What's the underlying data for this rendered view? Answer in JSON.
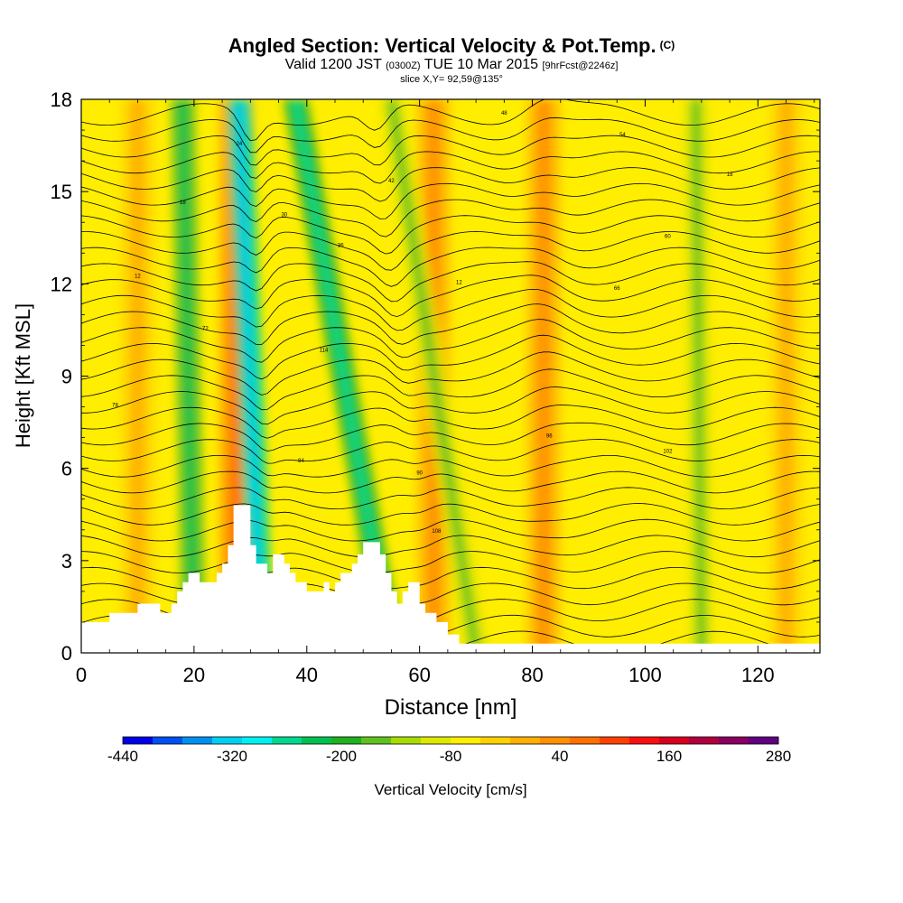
{
  "title": {
    "main": "Angled Section: Vertical Velocity & Pot.Temp.",
    "main_suffix": "(C)",
    "valid_a": "Valid 1200 JST",
    "valid_b": "(0300Z)",
    "valid_c": "TUE 10 Mar 2015",
    "valid_d": "[9hrFcst@2246z]",
    "slice": "slice X,Y= 92,59@135°"
  },
  "chart_data": {
    "type": "heatmap",
    "xlabel": "Distance [nm]",
    "ylabel": "Height [Kft MSL]",
    "xlim": [
      0,
      131
    ],
    "ylim": [
      0,
      18
    ],
    "x_ticks": [
      0,
      20,
      40,
      60,
      80,
      100,
      120
    ],
    "y_ticks": [
      0,
      3,
      6,
      9,
      12,
      15,
      18
    ],
    "colorbar": {
      "label": "Vertical Velocity [cm/s]",
      "min": -440,
      "max": 280,
      "step": 40,
      "tick_labels": [
        -440,
        -320,
        -200,
        -80,
        40,
        160,
        280
      ],
      "colors": [
        "#0000e6",
        "#0050f0",
        "#0090f0",
        "#00d0f0",
        "#00f0f0",
        "#00d890",
        "#00c050",
        "#20b020",
        "#60c020",
        "#a8dc00",
        "#e0e800",
        "#ffee00",
        "#ffd000",
        "#ffb000",
        "#ff9000",
        "#ff7000",
        "#ff4000",
        "#f81010",
        "#d80020",
        "#b00040",
        "#880060",
        "#600080"
      ]
    },
    "terrain_profile": [
      [
        0,
        1.0
      ],
      [
        5,
        1.0
      ],
      [
        5,
        1.3
      ],
      [
        10,
        1.3
      ],
      [
        10,
        1.6
      ],
      [
        14,
        1.6
      ],
      [
        14,
        1.3
      ],
      [
        16,
        1.3
      ],
      [
        16,
        1.6
      ],
      [
        17,
        1.6
      ],
      [
        17,
        2.0
      ],
      [
        18,
        2.0
      ],
      [
        18,
        2.3
      ],
      [
        19,
        2.3
      ],
      [
        19,
        2.6
      ],
      [
        21,
        2.6
      ],
      [
        21,
        2.3
      ],
      [
        24,
        2.3
      ],
      [
        24,
        2.6
      ],
      [
        25,
        2.6
      ],
      [
        25,
        2.9
      ],
      [
        26,
        2.9
      ],
      [
        26,
        3.5
      ],
      [
        27,
        3.5
      ],
      [
        27,
        4.8
      ],
      [
        30,
        4.8
      ],
      [
        30,
        3.5
      ],
      [
        31,
        3.5
      ],
      [
        31,
        2.9
      ],
      [
        33,
        2.9
      ],
      [
        33,
        2.6
      ],
      [
        34,
        2.6
      ],
      [
        34,
        3.2
      ],
      [
        36,
        3.2
      ],
      [
        36,
        2.9
      ],
      [
        37,
        2.9
      ],
      [
        37,
        2.6
      ],
      [
        38,
        2.6
      ],
      [
        38,
        2.3
      ],
      [
        40,
        2.3
      ],
      [
        40,
        2.0
      ],
      [
        43,
        2.0
      ],
      [
        43,
        2.3
      ],
      [
        44,
        2.3
      ],
      [
        44,
        2.0
      ],
      [
        45,
        2.0
      ],
      [
        45,
        2.3
      ],
      [
        46,
        2.3
      ],
      [
        46,
        2.6
      ],
      [
        48,
        2.6
      ],
      [
        48,
        2.9
      ],
      [
        49,
        2.9
      ],
      [
        49,
        3.2
      ],
      [
        50,
        3.2
      ],
      [
        50,
        3.6
      ],
      [
        53,
        3.6
      ],
      [
        53,
        3.2
      ],
      [
        54,
        3.2
      ],
      [
        54,
        2.6
      ],
      [
        55,
        2.6
      ],
      [
        55,
        2.0
      ],
      [
        56,
        2.0
      ],
      [
        56,
        1.6
      ],
      [
        57,
        1.6
      ],
      [
        57,
        2.0
      ],
      [
        58,
        2.0
      ],
      [
        58,
        2.3
      ],
      [
        60,
        2.3
      ],
      [
        60,
        1.6
      ],
      [
        61,
        1.6
      ],
      [
        61,
        1.3
      ],
      [
        63,
        1.3
      ],
      [
        63,
        1.0
      ],
      [
        65,
        1.0
      ],
      [
        65,
        0.6
      ],
      [
        67,
        0.6
      ],
      [
        67,
        0.3
      ],
      [
        131,
        0.3
      ]
    ],
    "ascent_bands": [
      {
        "center_x": 27.5,
        "value": 160
      },
      {
        "center_x": 82,
        "value": 120
      },
      {
        "center_x": 62.5,
        "value": 140
      },
      {
        "center_x": 10,
        "value": 80
      },
      {
        "center_x": 125,
        "value": 100
      }
    ],
    "descent_bands": [
      {
        "x_top": 18,
        "x_bottom": 20,
        "value": -200
      },
      {
        "x_top": 28,
        "x_bottom": 32,
        "value": -320
      },
      {
        "x_top": 38,
        "x_bottom": 55,
        "value": -240
      },
      {
        "x_top": 55,
        "x_bottom": 70,
        "value": -120
      },
      {
        "x_top": 109,
        "x_bottom": 110,
        "value": -100
      }
    ],
    "contour_labels": [
      "12",
      "14",
      "16",
      "18",
      "20",
      "22",
      "24",
      "26",
      "28",
      "30",
      "32",
      "34",
      "36",
      "38",
      "40",
      "42",
      "44",
      "46",
      "48",
      "50",
      "52",
      "54",
      "56",
      "58",
      "60",
      "62",
      "64",
      "66",
      "68",
      "70",
      "72",
      "74",
      "76",
      "78",
      "80",
      "82",
      "84",
      "86",
      "88",
      "90",
      "92",
      "94",
      "96",
      "98",
      "100",
      "102",
      "104",
      "106",
      "108",
      "110",
      "112",
      "114",
      "116",
      "118"
    ]
  }
}
